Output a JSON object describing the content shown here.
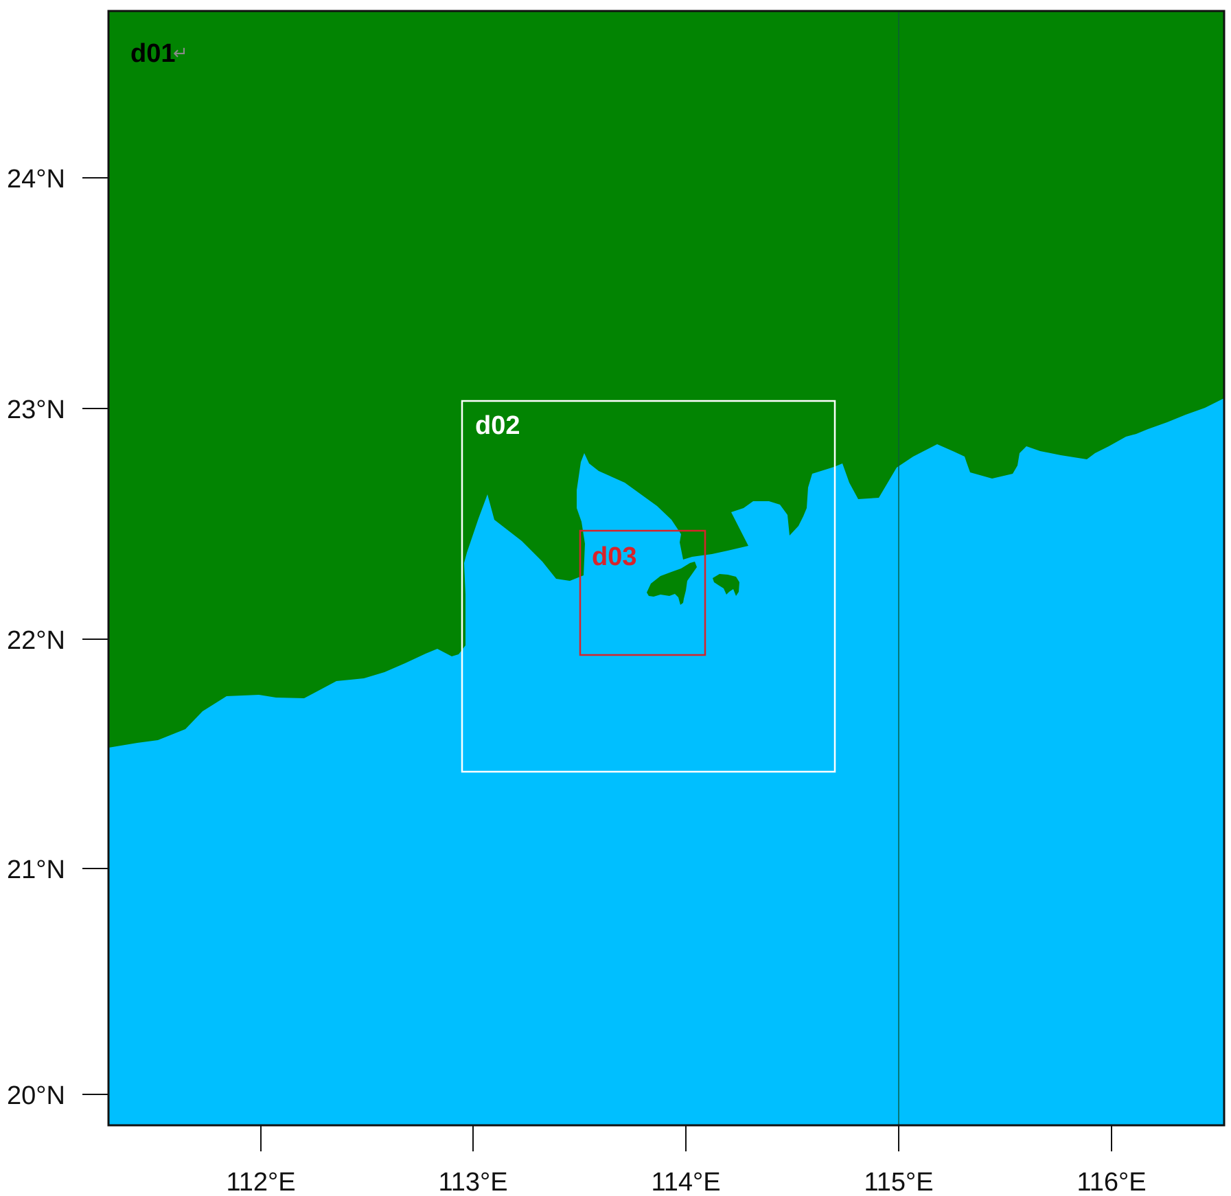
{
  "map": {
    "colors": {
      "land": "#028402",
      "ocean": "#00BFFF",
      "frame": "#111111",
      "gridline": "#0a5a3a",
      "d01_label": "#000000",
      "d02_box": "#ffffff",
      "d03_box": "#d8232a"
    },
    "domains": [
      {
        "id": "d01",
        "label": "d01",
        "return_mark": "↵"
      },
      {
        "id": "d02",
        "label": "d02",
        "lon_range": [
          112.95,
          114.7
        ],
        "lat_range": [
          21.42,
          23.04
        ]
      },
      {
        "id": "d03",
        "label": "d03",
        "lon_range": [
          113.5,
          114.09
        ],
        "lat_range": [
          21.93,
          22.48
        ]
      }
    ],
    "lat_ticks": [
      "24°N",
      "23°N",
      "22°N",
      "21°N",
      "20°N"
    ],
    "lon_ticks": [
      "112°E",
      "113°E",
      "114°E",
      "115°E",
      "116°E"
    ],
    "meridian_gridline": "115°E"
  }
}
